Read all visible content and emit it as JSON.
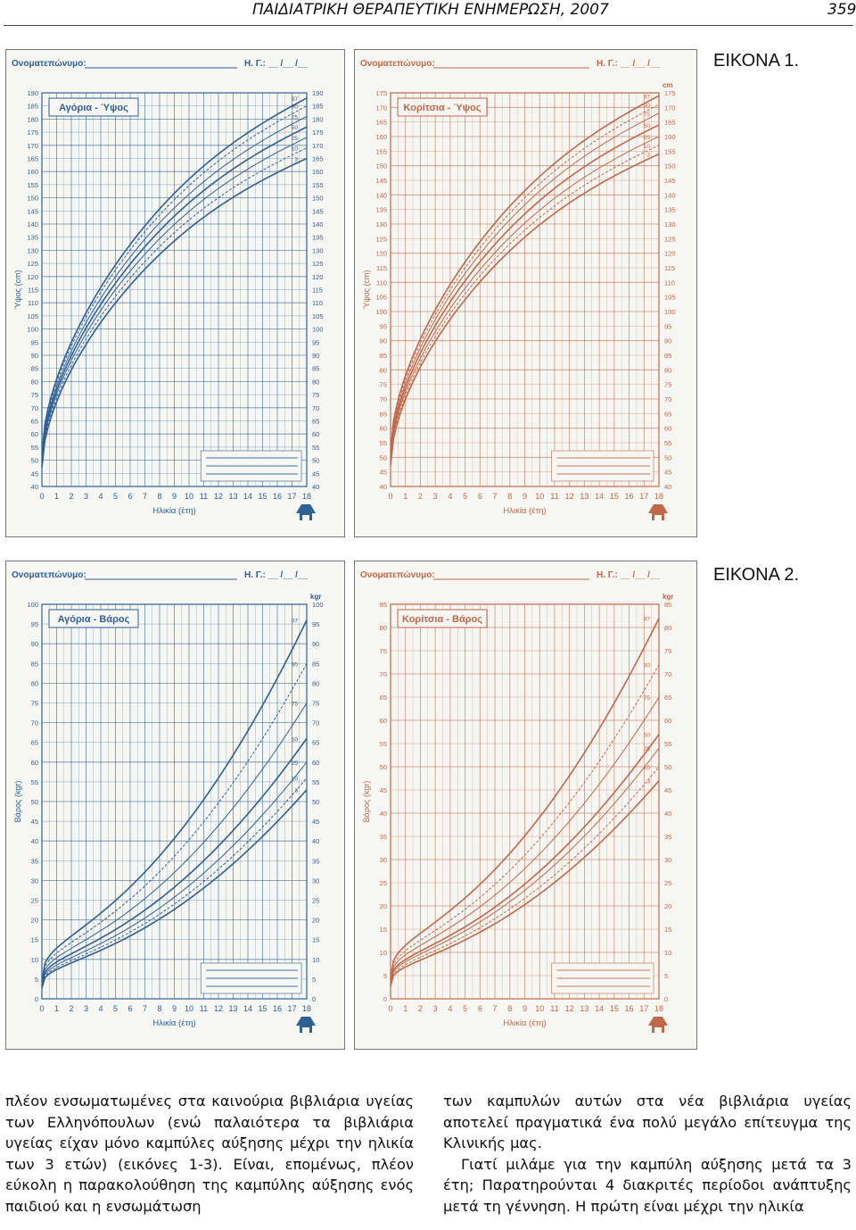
{
  "header": {
    "title": "ΠΑΙΔΙΑΤΡΙΚΗ ΘΕΡΑΠΕΥΤΙΚΗ ΕΝΗΜΕΡΩΣΗ, 2007",
    "page": "359"
  },
  "figures": {
    "fig1": "ΕΙΚΟΝΑ 1.",
    "fig2": "ΕΙΚΟΝΑ 2."
  },
  "charts": [
    {
      "id": "boys-height",
      "name_label": "Ονοματεπώνυμο:",
      "dob_label": "Η. Γ.: __ /__ /__",
      "title": "Αγόρια - Ύψος",
      "ylabel": "Ύψος (cm)",
      "xlabel": "Ηλικία (έτη)",
      "unit": "",
      "color": "#2e5f95",
      "chart_data": {
        "type": "line",
        "x": [
          0,
          18
        ],
        "ylim": [
          40,
          190
        ],
        "ystep": 5,
        "percentiles": [
          "97",
          "90",
          "75",
          "50",
          "25",
          "10",
          "3"
        ],
        "end_values": [
          188,
          185,
          181,
          177,
          173,
          169,
          165
        ]
      }
    },
    {
      "id": "girls-height",
      "name_label": "Ονοματεπώνυμο:",
      "dob_label": "Η. Γ.: __ /__ /__",
      "title": "Κορίτσια - Ύψος",
      "ylabel": "Ύψος (cm)",
      "xlabel": "Ηλικία (έτη)",
      "unit": "cm",
      "color": "#c0684a",
      "chart_data": {
        "type": "line",
        "x": [
          0,
          18
        ],
        "ylim": [
          40,
          175
        ],
        "ystep": 5,
        "percentiles": [
          "97",
          "90",
          "75",
          "50",
          "25",
          "10",
          "3"
        ],
        "end_values": [
          174,
          171,
          168,
          164,
          160,
          157,
          154
        ]
      }
    },
    {
      "id": "boys-weight",
      "name_label": "Ονοματεπώνυμο:",
      "dob_label": "Η. Γ.: __ /__ /__",
      "title": "Αγόρια - Βάρος",
      "ylabel": "Βάρος (kgr)",
      "xlabel": "Ηλικία (έτη)",
      "unit": "kgr",
      "color": "#2e5f95",
      "chart_data": {
        "type": "line",
        "x": [
          0,
          18
        ],
        "ylim": [
          0,
          100
        ],
        "ystep": 5,
        "percentiles": [
          "97",
          "90",
          "75",
          "50",
          "25",
          "10",
          "3"
        ],
        "end_values": [
          96,
          85,
          75,
          66,
          60,
          56,
          53
        ]
      }
    },
    {
      "id": "girls-weight",
      "name_label": "Ονοματεπώνυμο:",
      "dob_label": "Η. Γ.: __ /__ /__",
      "title": "Κορίτσια - Βάρος",
      "ylabel": "Βάρος (kgr)",
      "xlabel": "Ηλικία (έτη)",
      "unit": "kgr",
      "color": "#c0684a",
      "chart_data": {
        "type": "line",
        "x": [
          0,
          18
        ],
        "ylim": [
          0,
          85
        ],
        "ystep": 5,
        "percentiles": [
          "97",
          "90",
          "75",
          "50",
          "25",
          "10",
          "3"
        ],
        "end_values": [
          82,
          72,
          65,
          57,
          54,
          50,
          47
        ]
      }
    }
  ],
  "text": {
    "left": "πλέον ενσωματωμένες στα καινούρια βιβλιάρια υγείας των Ελληνόπουλων (ενώ παλαιότερα τα βιβλιάρια υγείας είχαν μόνο καμπύλες αύξησης μέχρι την ηλικία των 3 ετών) (εικόνες 1-3). Είναι, επομένως, πλέον εύκολη η παρακολούθηση της καμπύλης αύξησης ενός παιδιού και η ενσωμάτωση",
    "right_p1": "των καμπυλών αυτών στα νέα βιβλιάρια υγείας αποτελεί πραγματικά ένα πολύ μεγάλο επίτευγμα της Κλινικής μας.",
    "right_p2": "Γιατί μιλάμε για την καμπύλη αύξησης μετά τα 3 έτη; Παρατηρούνται 4 διακριτές περίοδοι ανάπτυξης μετά τη γέννηση. Η πρώτη είναι μέχρι την ηλικία"
  }
}
